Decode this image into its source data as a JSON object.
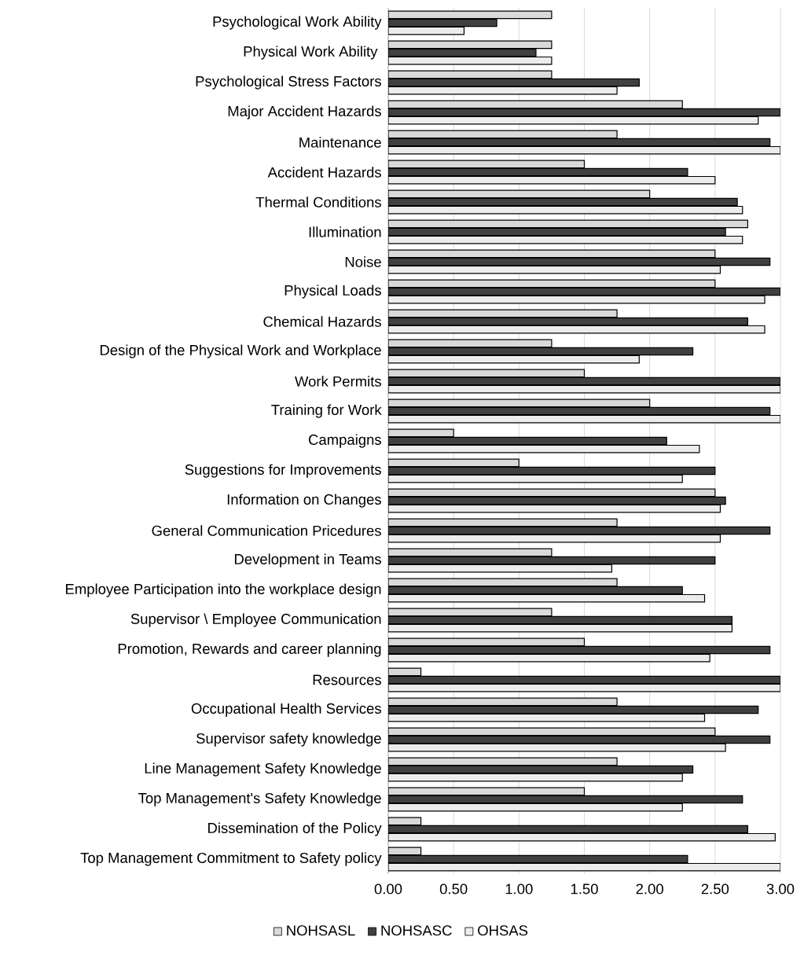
{
  "chart_data": {
    "type": "bar",
    "orientation": "horizontal",
    "categories": [
      "Psychological Work Ability",
      "Physical Work Ability ",
      "Psychological Stress Factors",
      "Major Accident Hazards",
      "Maintenance",
      "Accident Hazards",
      "Thermal Conditions",
      "Illumination",
      "Noise",
      "Physical Loads",
      "Chemical Hazards",
      "Design of the Physical Work and Workplace",
      "Work Permits",
      "Training for Work",
      "Campaigns",
      "Suggestions for Improvements",
      "Information on Changes",
      "General Communication Pricedures",
      "Development in Teams",
      "Employee Participation into the workplace design",
      "Supervisor \\ Employee Communication",
      "Promotion, Rewards and career planning",
      "Resources",
      "Occupational Health Services",
      "Supervisor safety knowledge",
      "Line Management Safety Knowledge",
      "Top Management's Safety Knowledge",
      "Dissemination of the Policy",
      "Top Management Commitment to Safety policy"
    ],
    "series": [
      {
        "name": "NOHSASL",
        "color": "#d9d9d9",
        "values": [
          1.25,
          1.25,
          1.25,
          2.25,
          1.75,
          1.5,
          2.0,
          2.75,
          2.5,
          2.5,
          1.75,
          1.25,
          1.5,
          2.0,
          0.5,
          1.0,
          2.5,
          1.75,
          1.25,
          1.75,
          1.25,
          1.5,
          0.25,
          1.75,
          2.5,
          1.75,
          1.5,
          0.25,
          0.25
        ]
      },
      {
        "name": "NOHSASC",
        "color": "#404040",
        "values": [
          0.83,
          1.13,
          1.92,
          3.0,
          2.92,
          2.29,
          2.67,
          2.58,
          2.92,
          3.0,
          2.75,
          2.33,
          3.0,
          2.92,
          2.13,
          2.5,
          2.58,
          2.92,
          2.5,
          2.25,
          2.63,
          2.92,
          3.0,
          2.83,
          2.92,
          2.33,
          2.71,
          2.75,
          2.29
        ]
      },
      {
        "name": "OHSAS",
        "color": "#ececec",
        "values": [
          0.58,
          1.25,
          1.75,
          2.83,
          3.0,
          2.5,
          2.71,
          2.71,
          2.54,
          2.88,
          2.88,
          1.92,
          3.0,
          3.0,
          2.38,
          2.25,
          2.54,
          2.54,
          1.71,
          2.42,
          2.63,
          2.46,
          3.0,
          2.42,
          2.58,
          2.25,
          2.25,
          2.96,
          3.0
        ]
      }
    ],
    "xlim": [
      0,
      3
    ],
    "xticks": [
      {
        "value": 0,
        "label": "0.00"
      },
      {
        "value": 0.5,
        "label": "0.50"
      },
      {
        "value": 1,
        "label": "1.00"
      },
      {
        "value": 1.5,
        "label": "1.50"
      },
      {
        "value": 2,
        "label": "2.00"
      },
      {
        "value": 2.5,
        "label": "2.50"
      },
      {
        "value": 3,
        "label": "3.00"
      }
    ],
    "grid": "x",
    "legend": "bottom"
  }
}
